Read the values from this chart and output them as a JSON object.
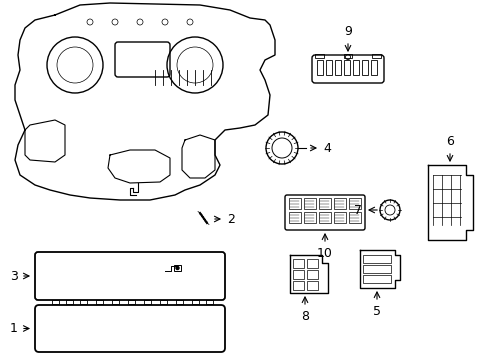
{
  "title": "",
  "bg_color": "#ffffff",
  "line_color": "#000000",
  "line_width": 1.0,
  "figsize": [
    4.89,
    3.6
  ],
  "dpi": 100
}
